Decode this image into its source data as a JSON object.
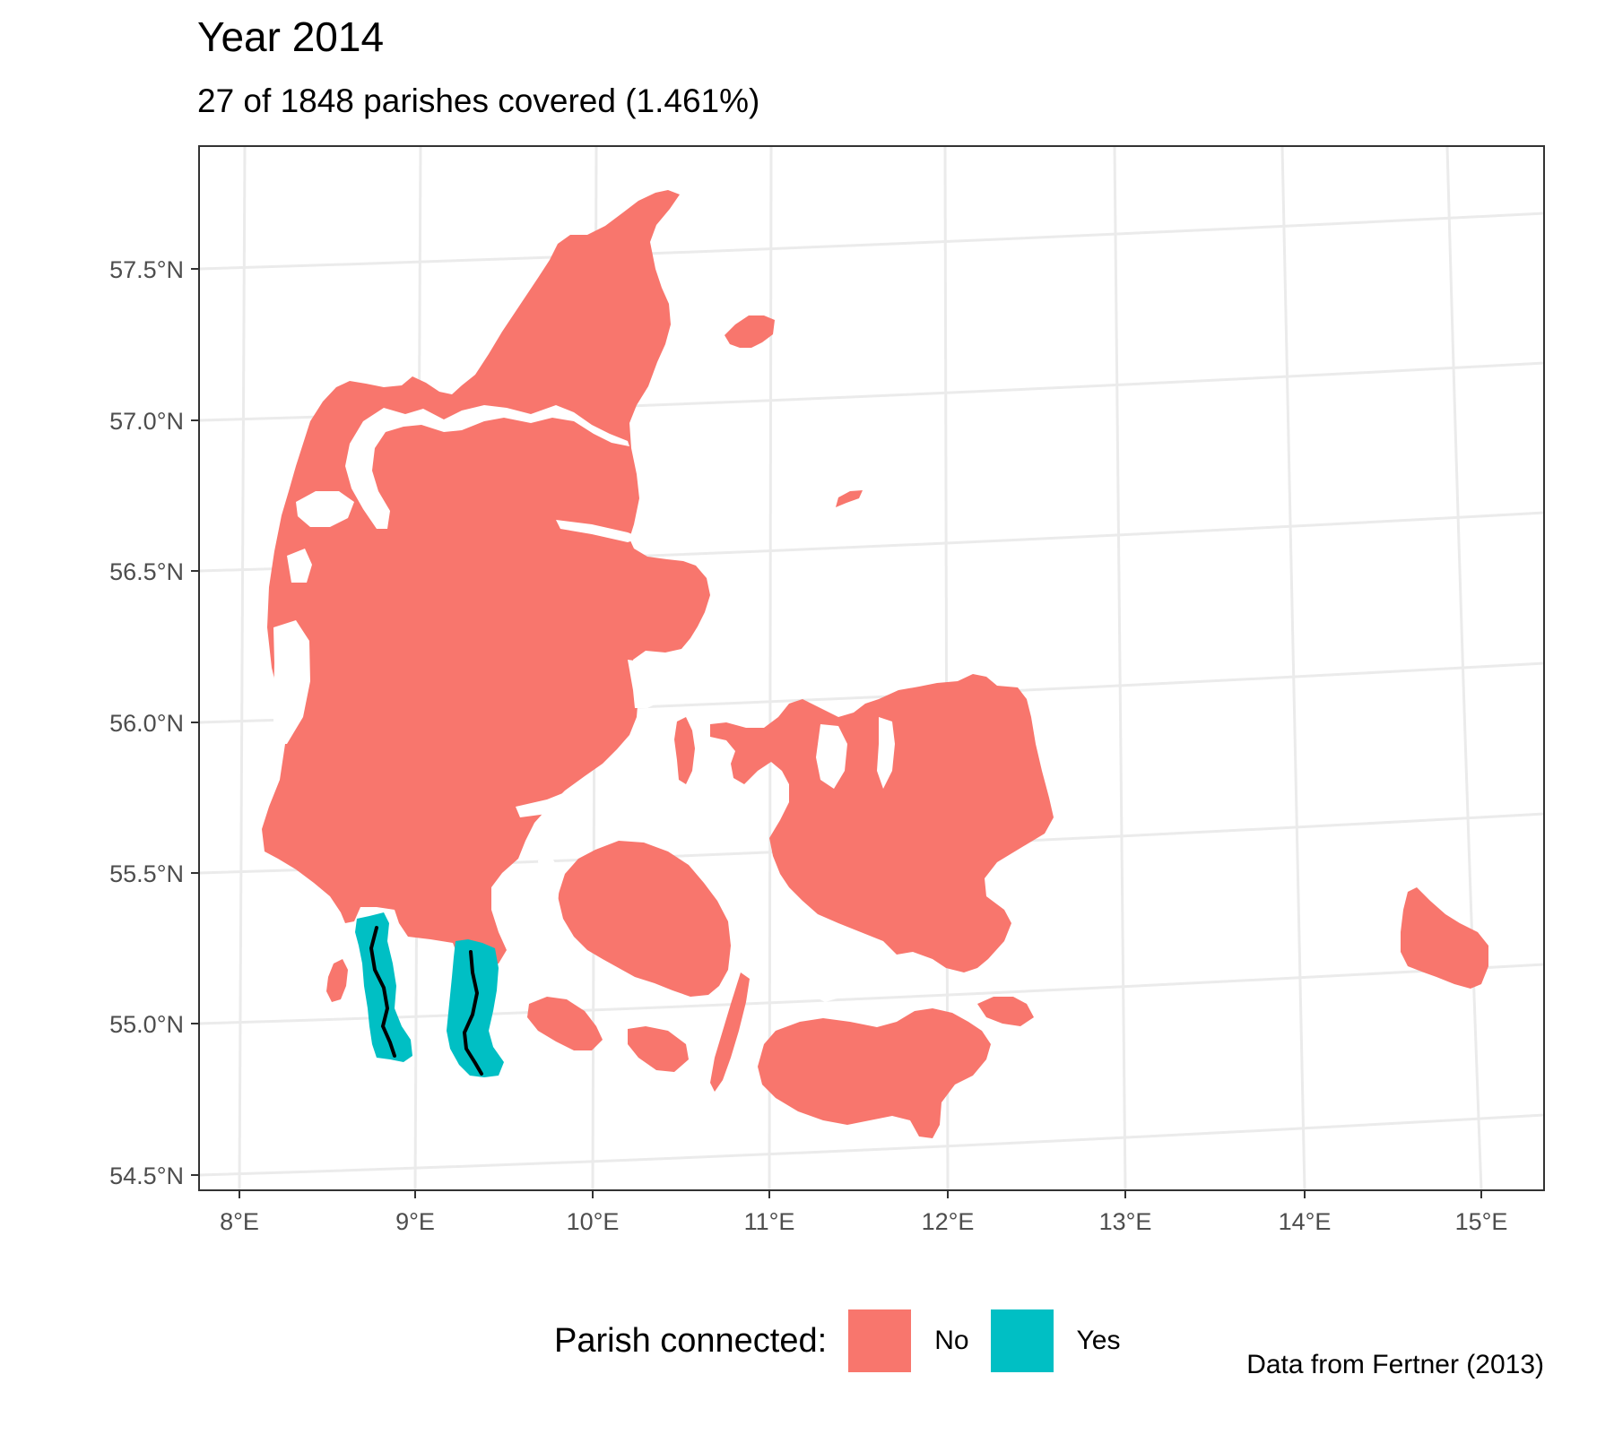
{
  "title": "Year 2014",
  "subtitle": "27 of 1848 parishes covered (1.461%)",
  "caption": "Data from Fertner (2013)",
  "axes": {
    "lat_labels": [
      "57.5°N",
      "57.0°N",
      "56.5°N",
      "56.0°N",
      "55.5°N",
      "55.0°N",
      "54.5°N"
    ],
    "lon_labels": [
      "8°E",
      "9°E",
      "10°E",
      "11°E",
      "12°E",
      "13°E",
      "14°E",
      "15°E"
    ]
  },
  "legend": {
    "title": "Parish connected:",
    "items": [
      {
        "label": "No",
        "color": "#f8766d"
      },
      {
        "label": "Yes",
        "color": "#00bfc4"
      }
    ]
  },
  "colors": {
    "not_connected": "#f8766d",
    "connected": "#00bfc4",
    "route_line": "#000000",
    "graticule": "#ebebeb",
    "panel_border": "#333333"
  },
  "map": {
    "region": "Denmark",
    "connected_parishes": 27,
    "total_parishes": 1848,
    "percent_covered": "1.461%",
    "routes": 2
  }
}
